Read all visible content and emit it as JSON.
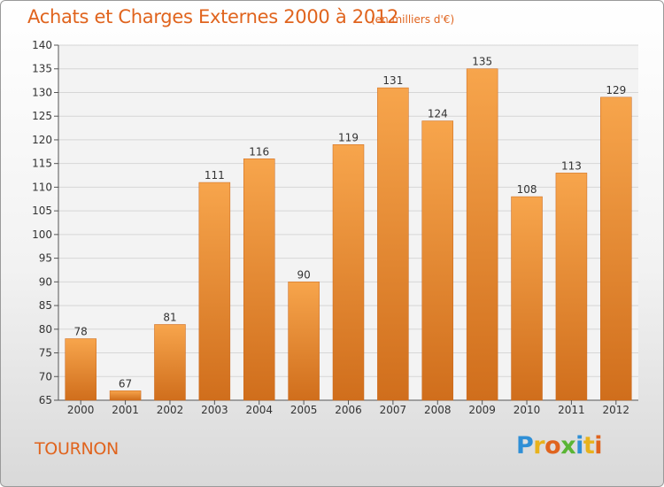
{
  "title": "Achats et Charges Externes 2000 à 2012",
  "subtitle": "(en milliers d'€)",
  "city": "TOURNON",
  "logo_text": "Proxiti",
  "colors": {
    "accent": "#e0641e",
    "bar_light": "#f7a54c",
    "bar_dark": "#d06e1c"
  },
  "chart_data": {
    "type": "bar",
    "title": "Achats et Charges Externes 2000 à 2012",
    "subtitle": "(en milliers d'€)",
    "categories": [
      "2000",
      "2001",
      "2002",
      "2003",
      "2004",
      "2005",
      "2006",
      "2007",
      "2008",
      "2009",
      "2010",
      "2011",
      "2012"
    ],
    "values": [
      78,
      67,
      81,
      111,
      116,
      90,
      119,
      131,
      124,
      135,
      108,
      113,
      129
    ],
    "xlabel": "",
    "ylabel": "",
    "ylim": [
      65,
      140
    ],
    "yticks": [
      65,
      70,
      75,
      80,
      85,
      90,
      95,
      100,
      105,
      110,
      115,
      120,
      125,
      130,
      135,
      140
    ],
    "grid": true,
    "data_labels": true
  }
}
